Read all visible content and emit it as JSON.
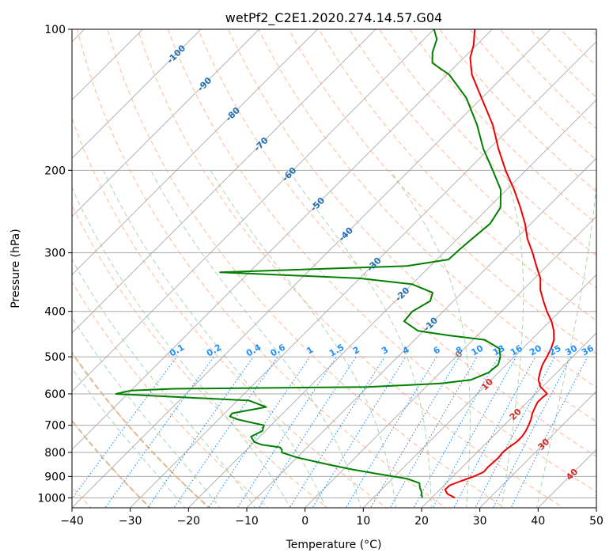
{
  "chart_data": {
    "type": "line",
    "subtype": "skew-t log-p diagram",
    "title": "wetPf2_C2E1.2020.274.14.57.G04",
    "xlabel": "Temperature (°C)",
    "ylabel": "Pressure (hPa)",
    "xlim": [
      -40,
      50
    ],
    "ylim": [
      1050,
      100
    ],
    "y_scale": "log",
    "grid": true,
    "x_ticks": [
      "−40",
      "−30",
      "−20",
      "−10",
      "0",
      "10",
      "20",
      "30",
      "40",
      "50"
    ],
    "y_ticks": [
      "100",
      "200",
      "300",
      "400",
      "500",
      "600",
      "700",
      "800",
      "900",
      "1000"
    ],
    "colors": {
      "temperature": "#ee0000",
      "dewpoint": "#008000",
      "isotherm": "#999999",
      "dry_adiabat": "#ffa07a",
      "moist_adiabat": "#8fc88f",
      "mixing_ratio": "#1e90ff",
      "isotherm_label": "#1f6fb4",
      "positive_isotherm_label": "#d62728",
      "zero_label": "#808080",
      "background_curve": "#d2b48c"
    },
    "isotherm_labels": [
      "-100",
      "-90",
      "-80",
      "-70",
      "-60",
      "-50",
      "-40",
      "-30",
      "-20",
      "-10",
      "0",
      "10",
      "20",
      "30",
      "40"
    ],
    "mixing_ratio_labels": [
      "0.1",
      "0.2",
      "0.4",
      "0.6",
      "1",
      "1.5",
      "2",
      "3",
      "4",
      "6",
      "8",
      "10",
      "13",
      "16",
      "20",
      "25",
      "30",
      "36"
    ],
    "series": [
      {
        "key": "temperature",
        "points": [
          [
            1000,
            24.0
          ],
          [
            980,
            22.0
          ],
          [
            960,
            20.9
          ],
          [
            940,
            21.0
          ],
          [
            920,
            22.2
          ],
          [
            900,
            23.6
          ],
          [
            880,
            24.5
          ],
          [
            860,
            24.4
          ],
          [
            840,
            24.5
          ],
          [
            820,
            24.6
          ],
          [
            800,
            24.4
          ],
          [
            780,
            24.6
          ],
          [
            760,
            25.0
          ],
          [
            740,
            25.0
          ],
          [
            720,
            24.7
          ],
          [
            700,
            24.2
          ],
          [
            680,
            23.6
          ],
          [
            660,
            22.8
          ],
          [
            640,
            22.2
          ],
          [
            625,
            21.8
          ],
          [
            610,
            21.8
          ],
          [
            600,
            22.0
          ],
          [
            590,
            20.9
          ],
          [
            580,
            19.7
          ],
          [
            560,
            18.1
          ],
          [
            540,
            17.1
          ],
          [
            520,
            16.2
          ],
          [
            500,
            15.6
          ],
          [
            480,
            14.9
          ],
          [
            460,
            13.9
          ],
          [
            440,
            12.3
          ],
          [
            420,
            10.3
          ],
          [
            400,
            7.8
          ],
          [
            380,
            5.4
          ],
          [
            360,
            3.0
          ],
          [
            340,
            1.0
          ],
          [
            320,
            -1.8
          ],
          [
            300,
            -4.7
          ],
          [
            280,
            -8.0
          ],
          [
            260,
            -11.0
          ],
          [
            240,
            -14.6
          ],
          [
            220,
            -18.7
          ],
          [
            200,
            -23.5
          ],
          [
            180,
            -28.4
          ],
          [
            160,
            -33.5
          ],
          [
            140,
            -40.1
          ],
          [
            125,
            -45.7
          ],
          [
            115,
            -48.9
          ],
          [
            108,
            -50.5
          ],
          [
            100,
            -53.0
          ]
        ]
      },
      {
        "key": "dewpoint",
        "points": [
          [
            1000,
            18.4
          ],
          [
            985,
            17.8
          ],
          [
            970,
            17.2
          ],
          [
            950,
            16.2
          ],
          [
            930,
            15.4
          ],
          [
            910,
            12.5
          ],
          [
            890,
            7.0
          ],
          [
            870,
            1.6
          ],
          [
            850,
            -3.2
          ],
          [
            820,
            -10.0
          ],
          [
            800,
            -13.5
          ],
          [
            790,
            -13.9
          ],
          [
            780,
            -14.7
          ],
          [
            770,
            -18.3
          ],
          [
            760,
            -20.0
          ],
          [
            740,
            -21.5
          ],
          [
            720,
            -20.5
          ],
          [
            700,
            -21.2
          ],
          [
            690,
            -24.0
          ],
          [
            680,
            -26.8
          ],
          [
            670,
            -28.6
          ],
          [
            660,
            -28.7
          ],
          [
            640,
            -24.0
          ],
          [
            620,
            -28.0
          ],
          [
            610,
            -40.0
          ],
          [
            600,
            -52.0
          ],
          [
            590,
            -50.0
          ],
          [
            585,
            -43.0
          ],
          [
            580,
            -10.0
          ],
          [
            570,
            2.0
          ],
          [
            560,
            6.5
          ],
          [
            540,
            8.3
          ],
          [
            520,
            8.6
          ],
          [
            500,
            7.6
          ],
          [
            480,
            6.0
          ],
          [
            460,
            2.0
          ],
          [
            450,
            -5.0
          ],
          [
            440,
            -11.0
          ],
          [
            420,
            -15.0
          ],
          [
            400,
            -15.3
          ],
          [
            380,
            -14.0
          ],
          [
            365,
            -15.0
          ],
          [
            350,
            -20.0
          ],
          [
            340,
            -30.0
          ],
          [
            330,
            -55.0
          ],
          [
            320,
            -24.0
          ],
          [
            310,
            -18.0
          ],
          [
            295,
            -17.8
          ],
          [
            280,
            -17.5
          ],
          [
            260,
            -17.0
          ],
          [
            240,
            -18.0
          ],
          [
            220,
            -21.0
          ],
          [
            200,
            -25.7
          ],
          [
            180,
            -31.0
          ],
          [
            160,
            -36.2
          ],
          [
            140,
            -42.7
          ],
          [
            125,
            -49.6
          ],
          [
            118,
            -54.5
          ],
          [
            112,
            -56.3
          ],
          [
            105,
            -57.8
          ],
          [
            100,
            -60.0
          ]
        ]
      }
    ]
  }
}
